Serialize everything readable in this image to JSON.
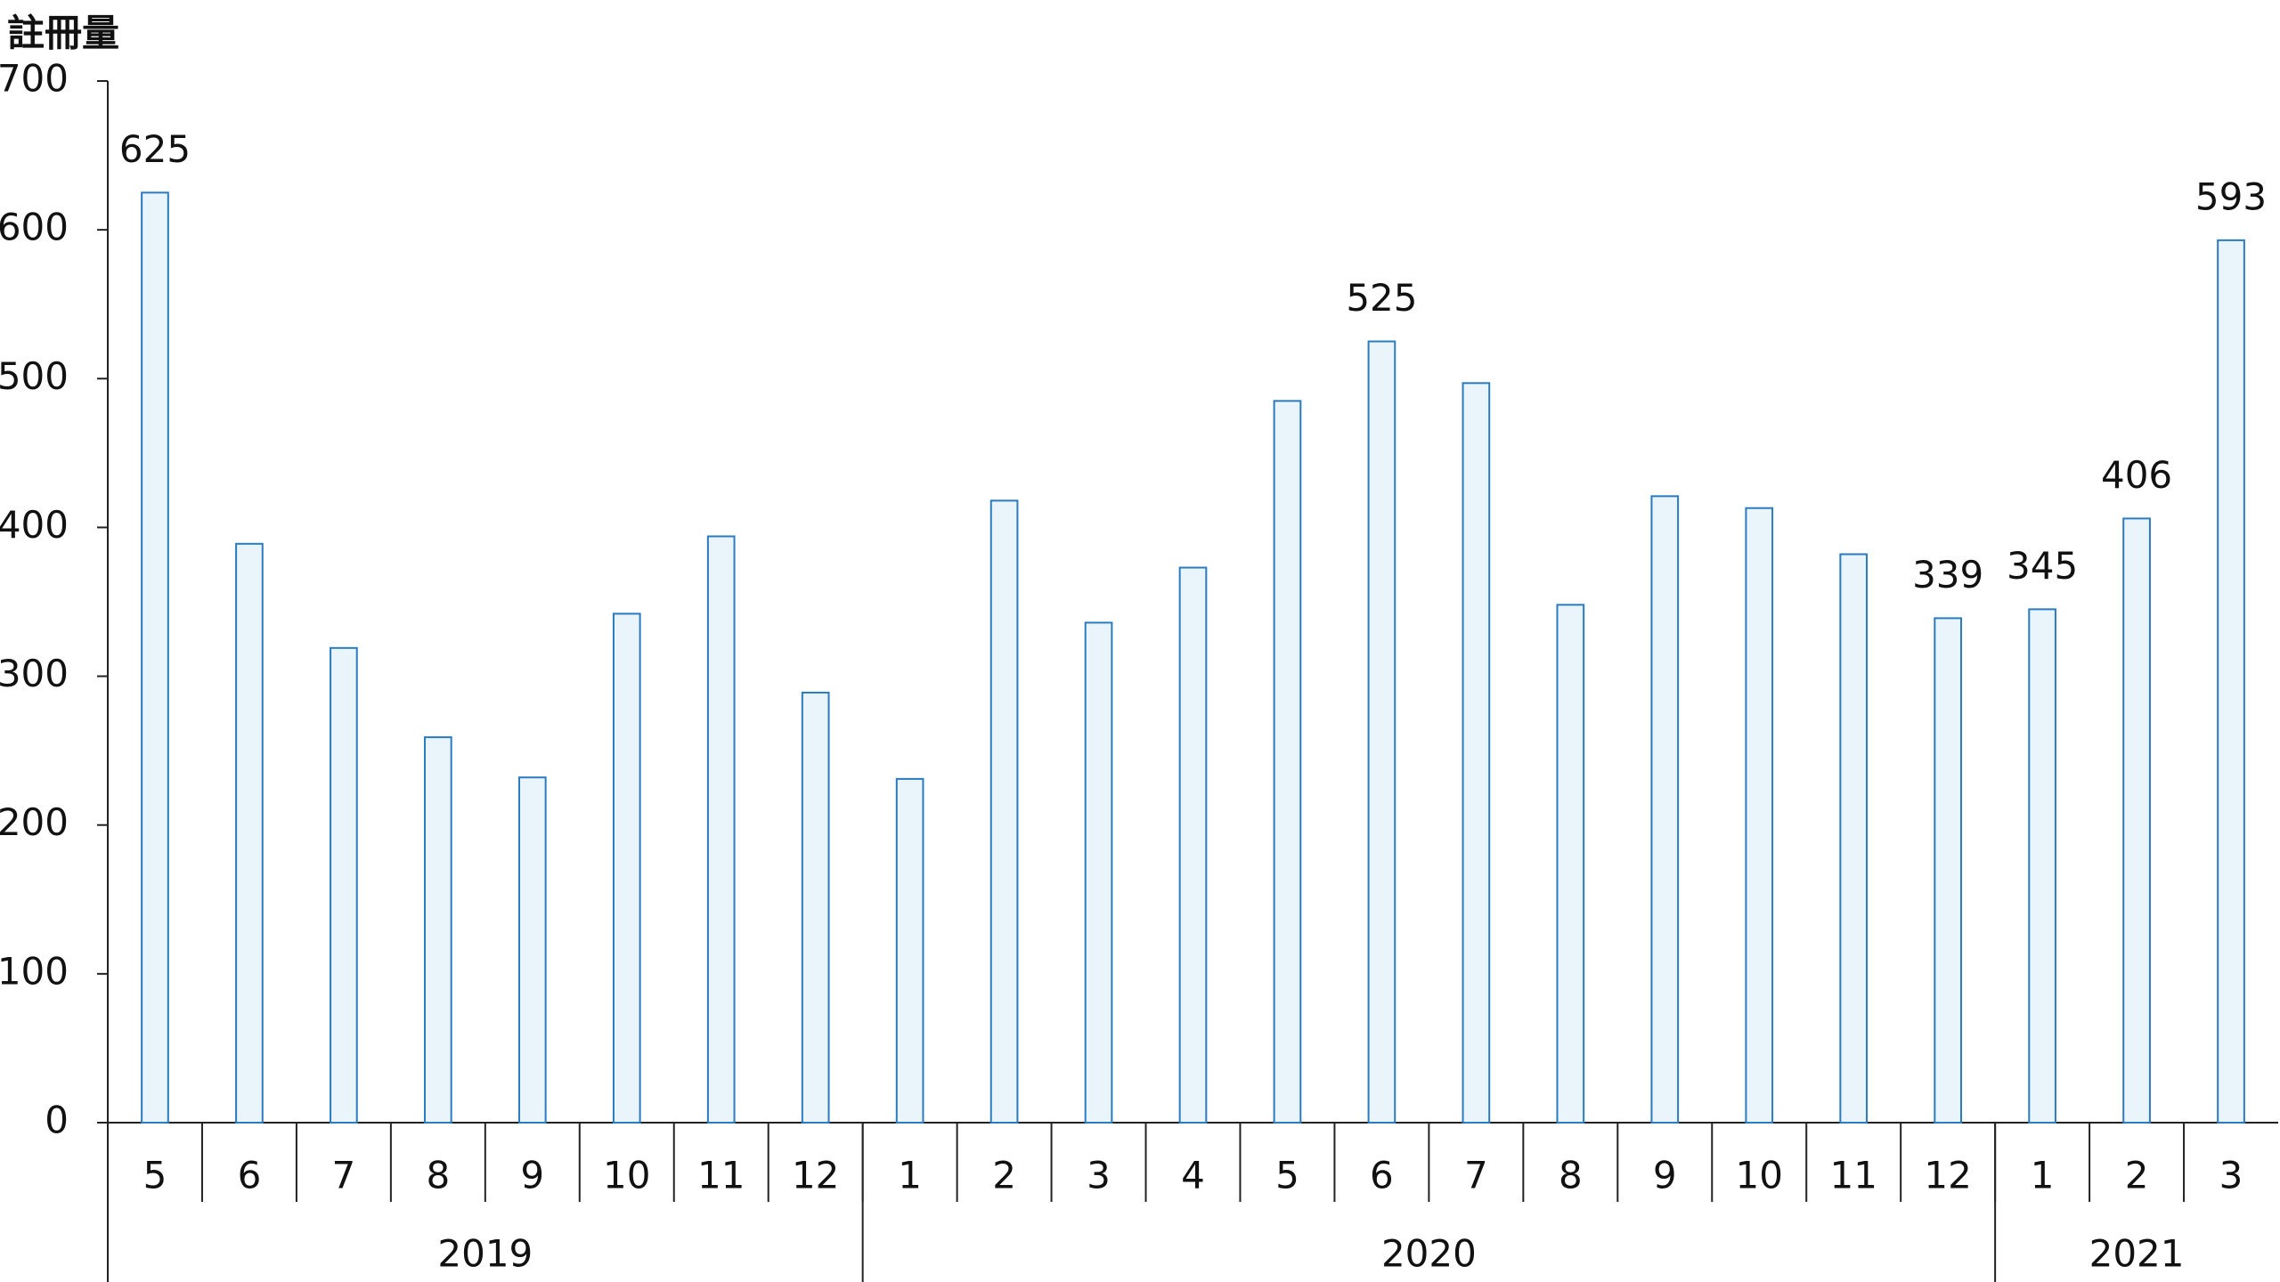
{
  "chart_data": {
    "type": "bar",
    "title": "註冊量",
    "categories": [
      "5",
      "6",
      "7",
      "8",
      "9",
      "10",
      "11",
      "12",
      "1",
      "2",
      "3",
      "4",
      "5",
      "6",
      "7",
      "8",
      "9",
      "10",
      "11",
      "12",
      "1",
      "2",
      "3"
    ],
    "values": [
      625,
      389,
      319,
      259,
      232,
      342,
      394,
      289,
      231,
      418,
      336,
      373,
      485,
      525,
      497,
      348,
      421,
      413,
      382,
      339,
      345,
      406,
      593
    ],
    "value_labels": [
      "625",
      null,
      null,
      null,
      null,
      null,
      null,
      null,
      null,
      null,
      null,
      null,
      null,
      "525",
      null,
      null,
      null,
      null,
      null,
      "339",
      "345",
      "406",
      "593"
    ],
    "groups": [
      {
        "label": "2019",
        "span": 8
      },
      {
        "label": "2020",
        "span": 12
      },
      {
        "label": "2021",
        "span": 3
      }
    ],
    "color": "#eaf4fb",
    "edge_color": "#2a7bc0",
    "ylim": [
      0,
      700
    ],
    "yticks": [
      0,
      100,
      200,
      300,
      400,
      500,
      600,
      700
    ],
    "grid": false
  }
}
